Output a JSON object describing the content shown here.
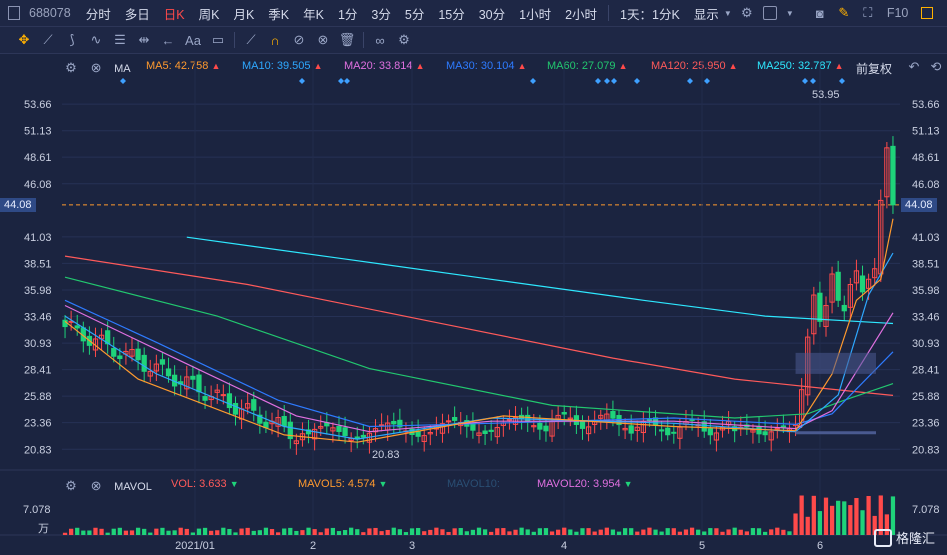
{
  "topbar": {
    "code": "688078",
    "periods": [
      "分时",
      "多日",
      "日K",
      "周K",
      "月K",
      "季K",
      "年K",
      "1分",
      "3分",
      "5分",
      "15分",
      "30分",
      "1小时",
      "2小时"
    ],
    "active_period": "日K",
    "combo": "1天：1分K",
    "display": "显示",
    "f10": "F10"
  },
  "toolbar": {
    "icons": [
      "move-icon",
      "line-tool-icon",
      "pen-tool-icon",
      "wave-tool-icon",
      "fib-tool-icon",
      "range-tool-icon",
      "arrow-tool-icon",
      "text-tool-icon",
      "comment-tool-icon",
      "ruler-icon",
      "magnet-icon",
      "lock-icon",
      "hide-icon",
      "trash-icon",
      "link-icon",
      "settings-icon"
    ],
    "text_label": "Aa"
  },
  "ma_legend": {
    "name": "MA",
    "items": [
      {
        "label": "MA5: 42.758",
        "color": "#ff9a2e",
        "dir": "up"
      },
      {
        "label": "MA10: 39.505",
        "color": "#2ea8ff",
        "dir": "up"
      },
      {
        "label": "MA20: 33.814",
        "color": "#e070e0",
        "dir": "up"
      },
      {
        "label": "MA30: 30.104",
        "color": "#2e7bff",
        "dir": "up"
      },
      {
        "label": "MA60: 27.079",
        "color": "#22c76f",
        "dir": "up"
      },
      {
        "label": "MA120: 25.950",
        "color": "#ff5a5a",
        "dir": "up"
      },
      {
        "label": "MA250: 32.787",
        "color": "#2ee8ff",
        "dir": "up"
      }
    ],
    "adjust": "前复权"
  },
  "vol_legend": {
    "name": "MAVOL",
    "items": [
      {
        "label": "VOL: 3.633",
        "color": "#ff5a5a",
        "dir": "dn"
      },
      {
        "label": "MAVOL5: 4.574",
        "color": "#ff9a2e",
        "dir": "dn"
      },
      {
        "label": "MAVOL10:",
        "color": "#2a4e73",
        "dir": ""
      },
      {
        "label": "MAVOL20: 3.954",
        "color": "#e070e0",
        "dir": "dn"
      }
    ],
    "vol_max": "7.078",
    "vol_unit": "万"
  },
  "price_axis": {
    "ticks": [
      "53.66",
      "51.13",
      "48.61",
      "46.08",
      "44.08",
      "41.03",
      "38.51",
      "35.98",
      "33.46",
      "30.93",
      "28.41",
      "25.88",
      "23.36",
      "20.83"
    ],
    "current": "44.08",
    "high_label": "53.95",
    "low_label": "20.83"
  },
  "date_axis": {
    "ticks": [
      "2021/01",
      "2",
      "3",
      "4",
      "5",
      "6"
    ]
  },
  "watermark": "格隆汇",
  "colors": {
    "up": "#ff4a4a",
    "down": "#1fd37a",
    "bg": "#1b2440",
    "grid": "#263155"
  },
  "chart_data": {
    "type": "candlestick",
    "ylim": [
      20.0,
      55.0
    ],
    "last_close": 44.08,
    "high": 53.95,
    "low": 20.83,
    "series": [
      {
        "name": "MA5",
        "values": [
          42.758
        ]
      },
      {
        "name": "MA10",
        "values": [
          39.505
        ]
      },
      {
        "name": "MA20",
        "values": [
          33.814
        ]
      },
      {
        "name": "MA30",
        "values": [
          30.104
        ]
      },
      {
        "name": "MA60",
        "values": [
          27.079
        ]
      },
      {
        "name": "MA120",
        "values": [
          25.95
        ]
      },
      {
        "name": "MA250",
        "values": [
          32.787
        ]
      }
    ],
    "volume": {
      "vol": 3.633,
      "mavol5": 4.574,
      "mavol20": 3.954,
      "max": 7.078,
      "unit": "万"
    }
  }
}
